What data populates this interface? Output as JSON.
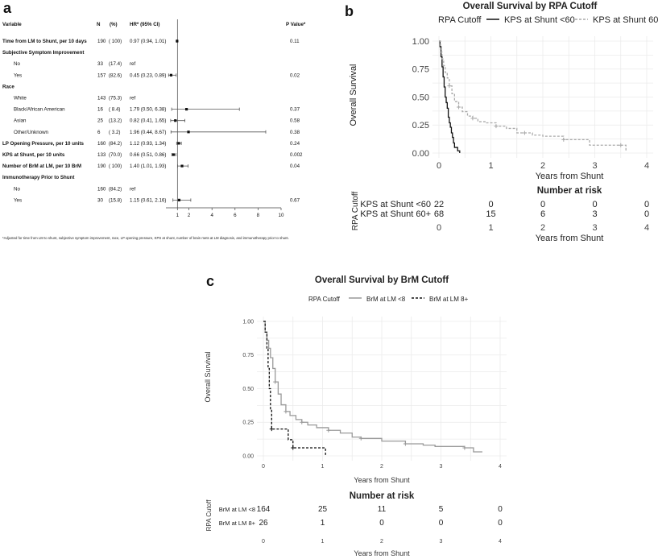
{
  "panel_a": {
    "letter": "a",
    "headers": {
      "variable": "Variable",
      "n": "N",
      "pct": "(%)",
      "hr": "HR* (95% CI)",
      "p": "P Value*"
    },
    "rows": [
      {
        "label": "Time from LM to Shunt, per 10 days",
        "bold": true,
        "indent": 0,
        "n": "190",
        "pct": "( 100)",
        "hr": "0.97 (0.94, 1.01)",
        "p": "0.11",
        "est": 0.97,
        "lo": 0.94,
        "hi": 1.01
      },
      {
        "label": "Subjective Symptom Improvement",
        "bold": true,
        "indent": 0,
        "n": "",
        "pct": "",
        "hr": "",
        "p": ""
      },
      {
        "label": "No",
        "bold": false,
        "indent": 1,
        "n": "33",
        "pct": "(17.4)",
        "hr": "ref",
        "p": ""
      },
      {
        "label": "Yes",
        "bold": false,
        "indent": 1,
        "n": "157",
        "pct": "(82.6)",
        "hr": "0.45 (0.23, 0.89)",
        "p": "0.02",
        "est": 0.45,
        "lo": 0.23,
        "hi": 0.89
      },
      {
        "label": "Race",
        "bold": true,
        "indent": 0,
        "n": "",
        "pct": "",
        "hr": "",
        "p": ""
      },
      {
        "label": "White",
        "bold": false,
        "indent": 1,
        "n": "143",
        "pct": "(75.3)",
        "hr": "ref",
        "p": ""
      },
      {
        "label": "Black/African American",
        "bold": false,
        "indent": 1,
        "n": "16",
        "pct": "( 8.4)",
        "hr": "1.79 (0.50, 6.38)",
        "p": "0.37",
        "est": 1.79,
        "lo": 0.5,
        "hi": 6.38
      },
      {
        "label": "Asian",
        "bold": false,
        "indent": 1,
        "n": "25",
        "pct": "(13.2)",
        "hr": "0.82 (0.41, 1.65)",
        "p": "0.58",
        "est": 0.82,
        "lo": 0.41,
        "hi": 1.65
      },
      {
        "label": "Other/Unknown",
        "bold": false,
        "indent": 1,
        "n": "6",
        "pct": "( 3.2)",
        "hr": "1.96 (0.44, 8.67)",
        "p": "0.38",
        "est": 1.96,
        "lo": 0.44,
        "hi": 8.67
      },
      {
        "label": "LP Opening Pressure, per 10 units",
        "bold": true,
        "indent": 0,
        "n": "160",
        "pct": "(84.2)",
        "hr": "1.12 (0.93, 1.34)",
        "p": "0.24",
        "est": 1.12,
        "lo": 0.93,
        "hi": 1.34
      },
      {
        "label": "KPS at Shunt, per 10 units",
        "bold": true,
        "indent": 0,
        "n": "133",
        "pct": "(70.0)",
        "hr": "0.66 (0.51, 0.86)",
        "p": "0.002",
        "est": 0.66,
        "lo": 0.51,
        "hi": 0.86
      },
      {
        "label": "Number of BrM at LM, per 10 BrM",
        "bold": true,
        "indent": 0,
        "n": "190",
        "pct": "( 100)",
        "hr": "1.40 (1.01, 1.93)",
        "p": "0.04",
        "est": 1.4,
        "lo": 1.01,
        "hi": 1.93
      },
      {
        "label": "Immunotherapy Prior to Shunt",
        "bold": true,
        "indent": 0,
        "n": "",
        "pct": "",
        "hr": "",
        "p": ""
      },
      {
        "label": "No",
        "bold": false,
        "indent": 1,
        "n": "160",
        "pct": "(84.2)",
        "hr": "ref",
        "p": ""
      },
      {
        "label": "Yes",
        "bold": false,
        "indent": 1,
        "n": "30",
        "pct": "(15.8)",
        "hr": "1.15 (0.61, 2.16)",
        "p": "0.67",
        "est": 1.15,
        "lo": 0.61,
        "hi": 2.16
      }
    ],
    "xticks": [
      "1",
      "2",
      "4",
      "6",
      "8",
      "10"
    ],
    "footnote": "*Adjusted for time from LM to shunt, subjective symptom improvement, race, LP opening pressure, KPS at shunt, number of brain mets at LM diagnosis, and immunotherapy prior to shunt."
  },
  "panel_b": {
    "letter": "b",
    "title": "Overall Survival by RPA Cutoff",
    "legend_title": "RPA Cutoff",
    "ylabel": "Overall Survival",
    "xlabel": "Years from Shunt",
    "yticks": [
      "0.00",
      "0.25",
      "0.50",
      "0.75",
      "1.00"
    ],
    "xticks": [
      "0",
      "1",
      "2",
      "3",
      "4"
    ],
    "risk_title": "Number at risk",
    "risk_ylabel": "RPA Cutoff"
  },
  "panel_c": {
    "letter": "c",
    "title": "Overall Survival by BrM Cutoff",
    "legend_title": "RPA Cutoff",
    "ylabel": "Overall Survival",
    "xlabel": "Years from Shunt",
    "yticks": [
      "0.00",
      "0.25",
      "0.50",
      "0.75",
      "1.00"
    ],
    "xticks": [
      "0",
      "1",
      "2",
      "3",
      "4"
    ],
    "risk_title": "Number at risk",
    "risk_ylabel": "RPA Cutoff"
  },
  "chart_data": [
    {
      "type": "scatter",
      "panel": "a",
      "x_scale": "linear",
      "xlim": [
        0,
        10
      ],
      "series": [
        {
          "name": "HR* (95% CI)",
          "points": [
            {
              "label": "Time from LM to Shunt, per 10 days",
              "x": 0.97,
              "lo": 0.94,
              "hi": 1.01
            },
            {
              "label": "Yes",
              "x": 0.45,
              "lo": 0.23,
              "hi": 0.89
            },
            {
              "label": "Black/African American",
              "x": 1.79,
              "lo": 0.5,
              "hi": 6.38
            },
            {
              "label": "Asian",
              "x": 0.82,
              "lo": 0.41,
              "hi": 1.65
            },
            {
              "label": "Other/Unknown",
              "x": 1.96,
              "lo": 0.44,
              "hi": 8.67
            },
            {
              "label": "LP Opening Pressure, per 10 units",
              "x": 1.12,
              "lo": 0.93,
              "hi": 1.34
            },
            {
              "label": "KPS at Shunt, per 10 units",
              "x": 0.66,
              "lo": 0.51,
              "hi": 0.86
            },
            {
              "label": "Number of BrM at LM, per 10 BrM",
              "x": 1.4,
              "lo": 1.01,
              "hi": 1.93
            },
            {
              "label": "Yes",
              "x": 1.15,
              "lo": 0.61,
              "hi": 2.16
            }
          ]
        }
      ]
    },
    {
      "type": "line",
      "panel": "b",
      "title": "Overall Survival by RPA Cutoff",
      "xlabel": "Years from Shunt",
      "ylabel": "Overall Survival",
      "xlim": [
        0,
        4
      ],
      "ylim": [
        0,
        1
      ],
      "grid": true,
      "legend_position": "top",
      "series": [
        {
          "name": "KPS at Shunt <60",
          "color": "#111111",
          "dash": "solid",
          "x": [
            0,
            0.02,
            0.04,
            0.06,
            0.08,
            0.1,
            0.12,
            0.14,
            0.16,
            0.18,
            0.2,
            0.22,
            0.24,
            0.26,
            0.28,
            0.3,
            0.33,
            0.36,
            0.4
          ],
          "y": [
            1,
            0.95,
            0.86,
            0.77,
            0.68,
            0.59,
            0.5,
            0.45,
            0.4,
            0.32,
            0.27,
            0.23,
            0.18,
            0.14,
            0.09,
            0.05,
            0.05,
            0.02,
            0
          ]
        },
        {
          "name": "KPS at Shunt 60+",
          "color": "#aaaaaa",
          "dash": "dashed",
          "x": [
            0,
            0.03,
            0.06,
            0.09,
            0.12,
            0.16,
            0.2,
            0.25,
            0.3,
            0.38,
            0.45,
            0.55,
            0.65,
            0.75,
            0.9,
            1.1,
            1.3,
            1.5,
            1.65,
            1.8,
            2.0,
            2.4,
            2.7,
            2.9,
            3.5,
            3.6
          ],
          "y": [
            1,
            0.9,
            0.84,
            0.78,
            0.72,
            0.67,
            0.6,
            0.53,
            0.46,
            0.41,
            0.37,
            0.33,
            0.31,
            0.28,
            0.27,
            0.24,
            0.22,
            0.18,
            0.18,
            0.16,
            0.15,
            0.12,
            0.12,
            0.07,
            0.07,
            0.02
          ]
        }
      ],
      "risk_table": {
        "times": [
          0,
          1,
          2,
          3,
          4
        ],
        "rows": [
          {
            "name": "KPS at Shunt <60",
            "counts": [
              22,
              0,
              0,
              0,
              0
            ]
          },
          {
            "name": "KPS at Shunt 60+",
            "counts": [
              68,
              15,
              6,
              3,
              0
            ]
          }
        ]
      }
    },
    {
      "type": "line",
      "panel": "c",
      "title": "Overall Survival by BrM Cutoff",
      "xlabel": "Years from Shunt",
      "ylabel": "Overall Survival",
      "xlim": [
        0,
        4
      ],
      "ylim": [
        0,
        1
      ],
      "grid": true,
      "legend_position": "top",
      "series": [
        {
          "name": "BrM at LM <8",
          "color": "#999999",
          "dash": "solid",
          "x": [
            0,
            0.03,
            0.06,
            0.09,
            0.12,
            0.16,
            0.2,
            0.25,
            0.3,
            0.38,
            0.45,
            0.55,
            0.65,
            0.75,
            0.9,
            1.1,
            1.3,
            1.5,
            1.65,
            1.8,
            2.0,
            2.4,
            2.7,
            2.9,
            3.4,
            3.55,
            3.7
          ],
          "y": [
            1,
            0.92,
            0.86,
            0.8,
            0.73,
            0.65,
            0.55,
            0.46,
            0.38,
            0.33,
            0.3,
            0.27,
            0.25,
            0.23,
            0.21,
            0.19,
            0.17,
            0.14,
            0.13,
            0.13,
            0.11,
            0.09,
            0.08,
            0.07,
            0.06,
            0.03,
            0.03
          ]
        },
        {
          "name": "BrM at LM 8+",
          "color": "#111111",
          "dash": "dashed",
          "x": [
            0,
            0.03,
            0.06,
            0.08,
            0.1,
            0.12,
            0.14,
            0.35,
            0.42,
            0.5,
            1.05,
            1.05
          ],
          "y": [
            1,
            0.92,
            0.8,
            0.65,
            0.5,
            0.35,
            0.2,
            0.2,
            0.12,
            0.06,
            0.04,
            0
          ]
        }
      ],
      "risk_table": {
        "times": [
          0,
          1,
          2,
          3,
          4
        ],
        "rows": [
          {
            "name": "BrM at LM <8",
            "counts": [
              164,
              25,
              11,
              5,
              0
            ]
          },
          {
            "name": "BrM at LM 8+",
            "counts": [
              26,
              1,
              0,
              0,
              0
            ]
          }
        ]
      }
    }
  ]
}
